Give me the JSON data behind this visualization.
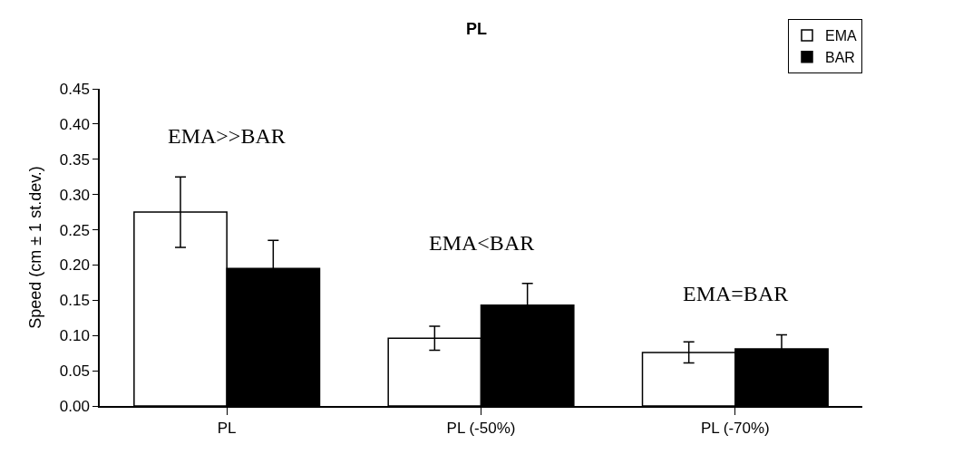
{
  "chart_data": {
    "type": "bar",
    "title": "PL",
    "ylabel": "Speed (cm ± 1 st.dev.)",
    "categories": [
      "PL",
      "PL (-50%)",
      "PL (-70%)"
    ],
    "series": [
      {
        "name": "EMA",
        "color": "#ffffff",
        "values": [
          0.275,
          0.096,
          0.076
        ],
        "errors": [
          0.05,
          0.017,
          0.015
        ]
      },
      {
        "name": "BAR",
        "color": "#000000",
        "values": [
          0.195,
          0.143,
          0.081
        ],
        "errors": [
          0.04,
          0.031,
          0.02
        ]
      }
    ],
    "ylim": [
      0,
      0.45
    ],
    "yticks": [
      {
        "value": 0,
        "label": "0.00"
      },
      {
        "value": 0.05,
        "label": "0.05"
      },
      {
        "value": 0.1,
        "label": "0.10"
      },
      {
        "value": 0.15,
        "label": "0.15"
      },
      {
        "value": 0.2,
        "label": "0.20"
      },
      {
        "value": 0.25,
        "label": "0.25"
      },
      {
        "value": 0.3,
        "label": "0.30"
      },
      {
        "value": 0.35,
        "label": "0.35"
      },
      {
        "value": 0.4,
        "label": "0.40"
      },
      {
        "value": 0.45,
        "label": "0.45"
      }
    ],
    "annotations": [
      "EMA>>BAR",
      "EMA<BAR",
      "EMA=BAR"
    ],
    "grid": false,
    "legend": "top right"
  }
}
